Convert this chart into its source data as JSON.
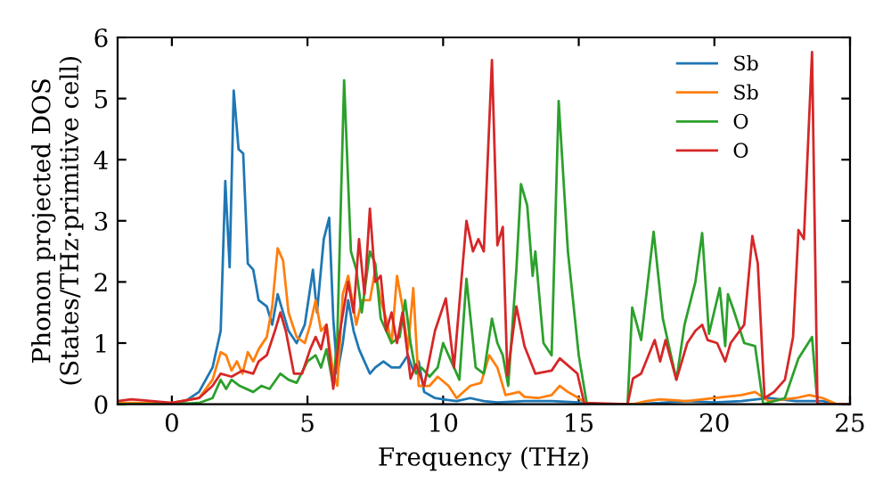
{
  "chart_data": {
    "type": "line",
    "xlabel": "Frequency (THz)",
    "ylabel": "Phonon projected DOS\n(States/THz·primitive cell)",
    "xlim": [
      -2,
      25
    ],
    "ylim": [
      0,
      6
    ],
    "xticks": [
      0,
      5,
      10,
      15,
      20,
      25
    ],
    "yticks": [
      0,
      1,
      2,
      3,
      4,
      5,
      6
    ],
    "grid": false,
    "legend": "top right",
    "marker": "none",
    "line_style": "solid",
    "series": [
      {
        "name": "Sb",
        "color": "#1f77b4",
        "x": [
          -2,
          0,
          0.5,
          1.0,
          1.5,
          1.8,
          1.97,
          2.13,
          2.28,
          2.46,
          2.63,
          2.8,
          3.0,
          3.2,
          3.5,
          3.7,
          3.9,
          4.1,
          4.3,
          4.6,
          4.9,
          5.2,
          5.35,
          5.6,
          5.8,
          5.95,
          6.1,
          6.3,
          6.5,
          6.7,
          6.9,
          7.1,
          7.3,
          7.5,
          7.8,
          8.1,
          8.4,
          8.7,
          8.9,
          9.1,
          9.3,
          9.7,
          10,
          10.5,
          11,
          11.5,
          12,
          13,
          14,
          15,
          15.3,
          17,
          18,
          19,
          20,
          21,
          22,
          23,
          24,
          24.5,
          25
        ],
        "values": [
          0,
          0.02,
          0.05,
          0.2,
          0.6,
          1.2,
          3.65,
          2.24,
          5.13,
          4.17,
          4.1,
          2.3,
          2.2,
          1.7,
          1.6,
          1.3,
          1.8,
          1.5,
          1.2,
          1.0,
          1.3,
          2.2,
          1.5,
          2.7,
          3.05,
          1.4,
          0.5,
          1.0,
          1.7,
          1.2,
          0.9,
          0.7,
          0.5,
          0.6,
          0.7,
          0.6,
          0.6,
          0.8,
          0.55,
          0.7,
          0.2,
          0.1,
          0.08,
          0.05,
          0.1,
          0.05,
          0.03,
          0.05,
          0.05,
          0.03,
          0,
          0,
          0.02,
          0.05,
          0.03,
          0.05,
          0.1,
          0.05,
          0.05,
          0,
          0
        ]
      },
      {
        "name": "Sb",
        "color": "#ff7f0e",
        "x": [
          -2,
          0,
          1,
          1.5,
          1.8,
          2.0,
          2.2,
          2.4,
          2.6,
          2.8,
          3.0,
          3.2,
          3.5,
          3.7,
          3.9,
          4.1,
          4.3,
          4.6,
          4.9,
          5.1,
          5.3,
          5.5,
          5.7,
          5.95,
          6.1,
          6.3,
          6.5,
          6.8,
          7.0,
          7.3,
          7.5,
          7.7,
          7.9,
          8.1,
          8.3,
          8.5,
          8.7,
          8.9,
          9.1,
          9.5,
          9.8,
          10.2,
          10.5,
          11,
          11.4,
          11.7,
          12,
          12.3,
          12.8,
          13,
          13.5,
          14,
          14.3,
          14.6,
          15,
          15.3,
          17,
          17.5,
          18,
          19,
          20,
          21,
          21.5,
          22,
          23,
          23.5,
          24,
          24.5,
          25
        ],
        "values": [
          0.02,
          0.02,
          0.1,
          0.4,
          0.85,
          0.8,
          0.55,
          0.7,
          0.5,
          0.85,
          0.7,
          0.9,
          1.1,
          1.6,
          2.55,
          2.35,
          1.5,
          1.1,
          1.0,
          1.3,
          1.7,
          1.2,
          1.3,
          0.5,
          0.3,
          1.8,
          2.1,
          1.3,
          1.7,
          1.7,
          2.2,
          1.7,
          1.4,
          1.0,
          2.1,
          1.6,
          0.9,
          1.9,
          0.3,
          0.3,
          0.45,
          0.3,
          0.1,
          0.3,
          0.35,
          0.8,
          0.6,
          0.15,
          0.2,
          0.12,
          0.1,
          0.15,
          0.3,
          0.2,
          0.1,
          0,
          0,
          0.05,
          0.08,
          0.05,
          0.1,
          0.15,
          0.2,
          0.05,
          0.1,
          0.15,
          0.1,
          0,
          0
        ]
      },
      {
        "name": "O",
        "color": "#2ca02c",
        "x": [
          -2,
          0,
          1,
          1.5,
          1.8,
          2.0,
          2.2,
          2.5,
          3.0,
          3.3,
          3.6,
          4.0,
          4.3,
          4.6,
          5.0,
          5.3,
          5.5,
          5.7,
          5.95,
          6.1,
          6.35,
          6.6,
          6.8,
          7.0,
          7.3,
          7.5,
          7.7,
          8.1,
          8.4,
          8.6,
          8.8,
          9.0,
          9.2,
          9.5,
          9.8,
          10.0,
          10.3,
          10.6,
          10.86,
          11.2,
          11.5,
          11.8,
          12.0,
          12.2,
          12.4,
          12.7,
          12.87,
          13.1,
          13.3,
          13.4,
          13.7,
          14.0,
          14.26,
          14.6,
          15.0,
          15.3,
          16.8,
          16.97,
          17.3,
          17.76,
          18.1,
          18.6,
          18.9,
          19.3,
          19.55,
          19.8,
          20.2,
          20.4,
          20.5,
          20.7,
          21.1,
          21.5,
          21.8,
          22.6,
          23.1,
          23.6,
          23.8,
          25
        ],
        "values": [
          0,
          0,
          0.02,
          0.1,
          0.4,
          0.25,
          0.4,
          0.3,
          0.2,
          0.3,
          0.25,
          0.5,
          0.4,
          0.35,
          0.7,
          0.8,
          0.6,
          0.9,
          0.3,
          1.1,
          5.3,
          2.5,
          2.2,
          1.5,
          2.5,
          2.3,
          1.4,
          1.0,
          1.1,
          1.7,
          1.0,
          0.5,
          0.6,
          0.45,
          0.6,
          1.0,
          0.7,
          0.4,
          2.05,
          0.6,
          0.5,
          1.4,
          1.0,
          0.8,
          0.3,
          2.2,
          3.6,
          3.25,
          2.1,
          2.5,
          1.0,
          0.8,
          4.96,
          2.5,
          0.8,
          0,
          0,
          1.58,
          1.05,
          2.82,
          1.4,
          0.4,
          1.3,
          2.0,
          2.8,
          1.15,
          1.9,
          0.95,
          1.8,
          1.55,
          1.0,
          0.95,
          0,
          0.1,
          0.75,
          1.1,
          0,
          0
        ]
      },
      {
        "name": "O",
        "color": "#d62728",
        "x": [
          -2,
          -1.5,
          -1,
          0,
          1,
          1.5,
          1.8,
          2.2,
          2.6,
          3.0,
          3.2,
          3.5,
          3.8,
          4.0,
          4.2,
          4.5,
          4.8,
          5.1,
          5.3,
          5.5,
          5.7,
          5.95,
          6.2,
          6.5,
          6.7,
          6.9,
          7.1,
          7.3,
          7.5,
          7.7,
          7.9,
          8.1,
          8.3,
          8.5,
          8.8,
          9.0,
          9.3,
          9.7,
          10.1,
          10.4,
          10.86,
          11.1,
          11.3,
          11.5,
          11.8,
          12.0,
          12.2,
          12.37,
          12.7,
          13.0,
          13.4,
          14.0,
          14.3,
          14.95,
          15.2,
          16.8,
          17.0,
          17.3,
          17.8,
          18.0,
          18.2,
          18.6,
          19.0,
          19.3,
          19.55,
          19.75,
          20.1,
          20.4,
          20.6,
          21.1,
          21.4,
          21.6,
          21.85,
          22.2,
          22.6,
          22.9,
          23.1,
          23.3,
          23.6,
          23.8,
          25
        ],
        "values": [
          0.05,
          0.08,
          0.06,
          0.02,
          0.1,
          0.3,
          0.5,
          0.45,
          0.55,
          0.5,
          0.7,
          0.8,
          1.2,
          1.5,
          1.2,
          0.5,
          0.5,
          0.9,
          1.1,
          0.9,
          1.3,
          0.25,
          1.2,
          2.0,
          1.5,
          2.7,
          1.8,
          3.2,
          2.0,
          2.1,
          1.2,
          1.5,
          1.0,
          1.5,
          0.42,
          0.65,
          0.3,
          1.2,
          1.73,
          0.6,
          3.0,
          2.5,
          2.7,
          2.5,
          5.63,
          2.6,
          2.9,
          0.47,
          1.6,
          0.95,
          0.5,
          0.55,
          0.75,
          0.5,
          0.02,
          0,
          0.42,
          0.5,
          1.05,
          0.7,
          1.05,
          0.4,
          1.0,
          1.2,
          1.3,
          1.05,
          1.0,
          0.7,
          1.0,
          1.3,
          2.75,
          2.3,
          0.1,
          0.2,
          0.4,
          1.1,
          2.85,
          2.7,
          5.76,
          0,
          0
        ]
      }
    ]
  }
}
